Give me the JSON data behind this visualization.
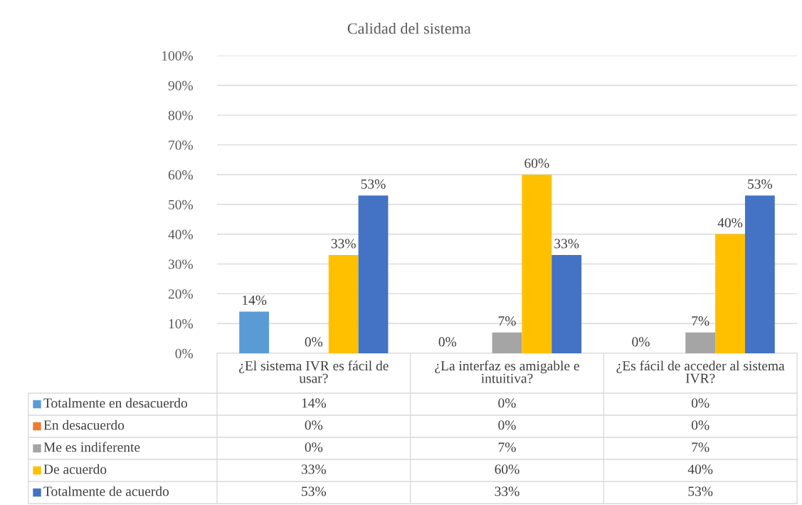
{
  "chart_data": {
    "type": "bar",
    "title": "Calidad del sistema",
    "categories": [
      "¿El sistema IVR es fácil de usar?",
      "¿La interfaz es amigable e intuitiva?",
      "¿Es fácil de acceder al sistema IVR?"
    ],
    "series": [
      {
        "name": "Totalmente en desacuerdo",
        "color": "#5b9bd5",
        "values": [
          14,
          0,
          0
        ],
        "value_labels": [
          "14%",
          "0%",
          "0%"
        ]
      },
      {
        "name": "En desacuerdo",
        "color": "#ed7d31",
        "values": [
          0,
          0,
          0
        ],
        "value_labels": [
          "0%",
          "0%",
          "0%"
        ],
        "data_labels": false
      },
      {
        "name": "Me es indiferente",
        "color": "#a5a5a5",
        "values": [
          0,
          7,
          7
        ],
        "value_labels": [
          "0%",
          "7%",
          "7%"
        ]
      },
      {
        "name": "De acuerdo",
        "color": "#ffc000",
        "values": [
          33,
          60,
          40
        ],
        "value_labels": [
          "33%",
          "60%",
          "40%"
        ]
      },
      {
        "name": "Totalmente de acuerdo",
        "color": "#4472c4",
        "values": [
          53,
          33,
          53
        ],
        "value_labels": [
          "53%",
          "33%",
          "53%"
        ]
      }
    ],
    "ylim": [
      0,
      100
    ],
    "yticks": [
      {
        "value": 0,
        "label": "0%"
      },
      {
        "value": 10,
        "label": "10%"
      },
      {
        "value": 20,
        "label": "20%"
      },
      {
        "value": 30,
        "label": "30%"
      },
      {
        "value": 40,
        "label": "40%"
      },
      {
        "value": 50,
        "label": "50%"
      },
      {
        "value": 60,
        "label": "60%"
      },
      {
        "value": 70,
        "label": "70%"
      },
      {
        "value": 80,
        "label": "80%"
      },
      {
        "value": 90,
        "label": "90%"
      },
      {
        "value": 100,
        "label": "100%"
      }
    ],
    "grid": "y",
    "legend": "bottom"
  }
}
